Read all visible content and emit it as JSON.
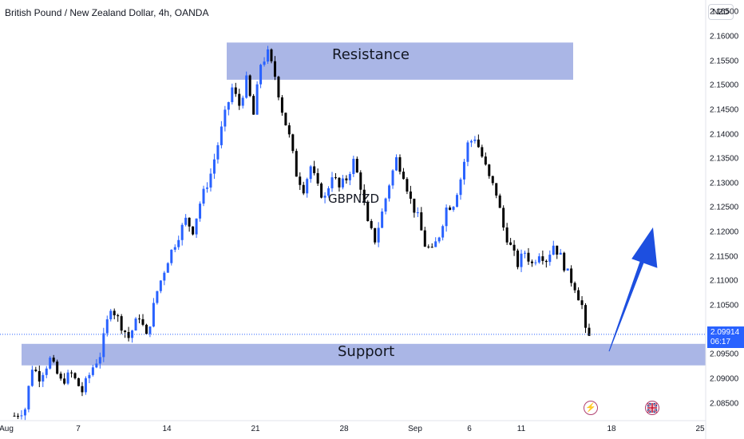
{
  "header": {
    "title": "British Pound / New Zealand Dollar, 4h, OANDA",
    "currency_button": "NZD"
  },
  "price_tag": {
    "price": "2.09914",
    "countdown": "06:17"
  },
  "icons": {
    "events": "lightning-icon",
    "news": "flag-icon"
  },
  "colors": {
    "up_candle": "#2962ff",
    "down_candle": "#000000",
    "zone": "#aab6e6",
    "arrow": "#1d4fe0",
    "price_tag": "#2962ff"
  },
  "chart_data": {
    "type": "candlestick",
    "symbol": "GBPNZD",
    "interval": "4h",
    "ylim": [
      2.0815,
      2.1675
    ],
    "y_ticks": [
      "2.16500",
      "2.16000",
      "2.15500",
      "2.15000",
      "2.14500",
      "2.14000",
      "2.13500",
      "2.13000",
      "2.12500",
      "2.12000",
      "2.11500",
      "2.11000",
      "2.10500",
      "2.10000",
      "2.09500",
      "2.09000",
      "2.08500"
    ],
    "x_ticks": [
      "Aug",
      "7",
      "14",
      "21",
      "28",
      "Sep",
      "6",
      "11",
      "18",
      "25"
    ],
    "zones": [
      {
        "label": "Resistance",
        "low": 2.1512,
        "high": 2.1588
      },
      {
        "label": "Support",
        "low": 2.0928,
        "high": 2.0972
      }
    ],
    "annotation": {
      "label": "GBPNZD"
    },
    "arrow": {
      "direction": "up",
      "from_price": 2.096,
      "to_price": 2.121
    },
    "last_price": 2.09914,
    "trend_path": [
      [
        0,
        2.0825
      ],
      [
        6,
        2.084
      ],
      [
        10,
        2.0925
      ],
      [
        14,
        2.0905
      ],
      [
        20,
        2.094
      ],
      [
        26,
        2.0895
      ],
      [
        32,
        2.091
      ],
      [
        38,
        2.0875
      ],
      [
        44,
        2.0925
      ],
      [
        48,
        2.095
      ],
      [
        54,
        2.105
      ],
      [
        60,
        2.101
      ],
      [
        64,
        2.0985
      ],
      [
        70,
        2.103
      ],
      [
        74,
        2.0985
      ],
      [
        80,
        2.108
      ],
      [
        86,
        2.1145
      ],
      [
        92,
        2.1195
      ],
      [
        96,
        2.1225
      ],
      [
        100,
        2.1205
      ],
      [
        104,
        2.126
      ],
      [
        110,
        2.132
      ],
      [
        114,
        2.138
      ],
      [
        118,
        2.144
      ],
      [
        122,
        2.1495
      ],
      [
        126,
        2.146
      ],
      [
        130,
        2.151
      ],
      [
        134,
        2.144
      ],
      [
        138,
        2.1545
      ],
      [
        142,
        2.1565
      ],
      [
        146,
        2.152
      ],
      [
        150,
        2.145
      ],
      [
        154,
        2.1395
      ],
      [
        158,
        2.132
      ],
      [
        162,
        2.129
      ],
      [
        166,
        2.1335
      ],
      [
        170,
        2.129
      ],
      [
        174,
        2.127
      ],
      [
        178,
        2.132
      ],
      [
        182,
        2.129
      ],
      [
        186,
        2.131
      ],
      [
        190,
        2.1345
      ],
      [
        194,
        2.1295
      ],
      [
        198,
        2.1215
      ],
      [
        202,
        2.1185
      ],
      [
        206,
        2.124
      ],
      [
        210,
        2.13
      ],
      [
        214,
        2.135
      ],
      [
        218,
        2.132
      ],
      [
        222,
        2.1265
      ],
      [
        226,
        2.123
      ],
      [
        230,
        2.1175
      ],
      [
        234,
        2.116
      ],
      [
        238,
        2.1195
      ],
      [
        242,
        2.125
      ],
      [
        246,
        2.126
      ],
      [
        250,
        2.131
      ],
      [
        254,
        2.138
      ],
      [
        258,
        2.1395
      ],
      [
        262,
        2.1355
      ],
      [
        266,
        2.131
      ],
      [
        270,
        2.128
      ],
      [
        274,
        2.121
      ],
      [
        278,
        2.117
      ],
      [
        282,
        2.1135
      ],
      [
        286,
        2.116
      ],
      [
        290,
        2.1135
      ],
      [
        294,
        2.116
      ],
      [
        298,
        2.1145
      ],
      [
        302,
        2.1175
      ],
      [
        306,
        2.115
      ],
      [
        310,
        2.1115
      ],
      [
        314,
        2.109
      ],
      [
        318,
        2.105
      ],
      [
        320,
        2.0995
      ],
      [
        322,
        2.0965
      ]
    ]
  }
}
